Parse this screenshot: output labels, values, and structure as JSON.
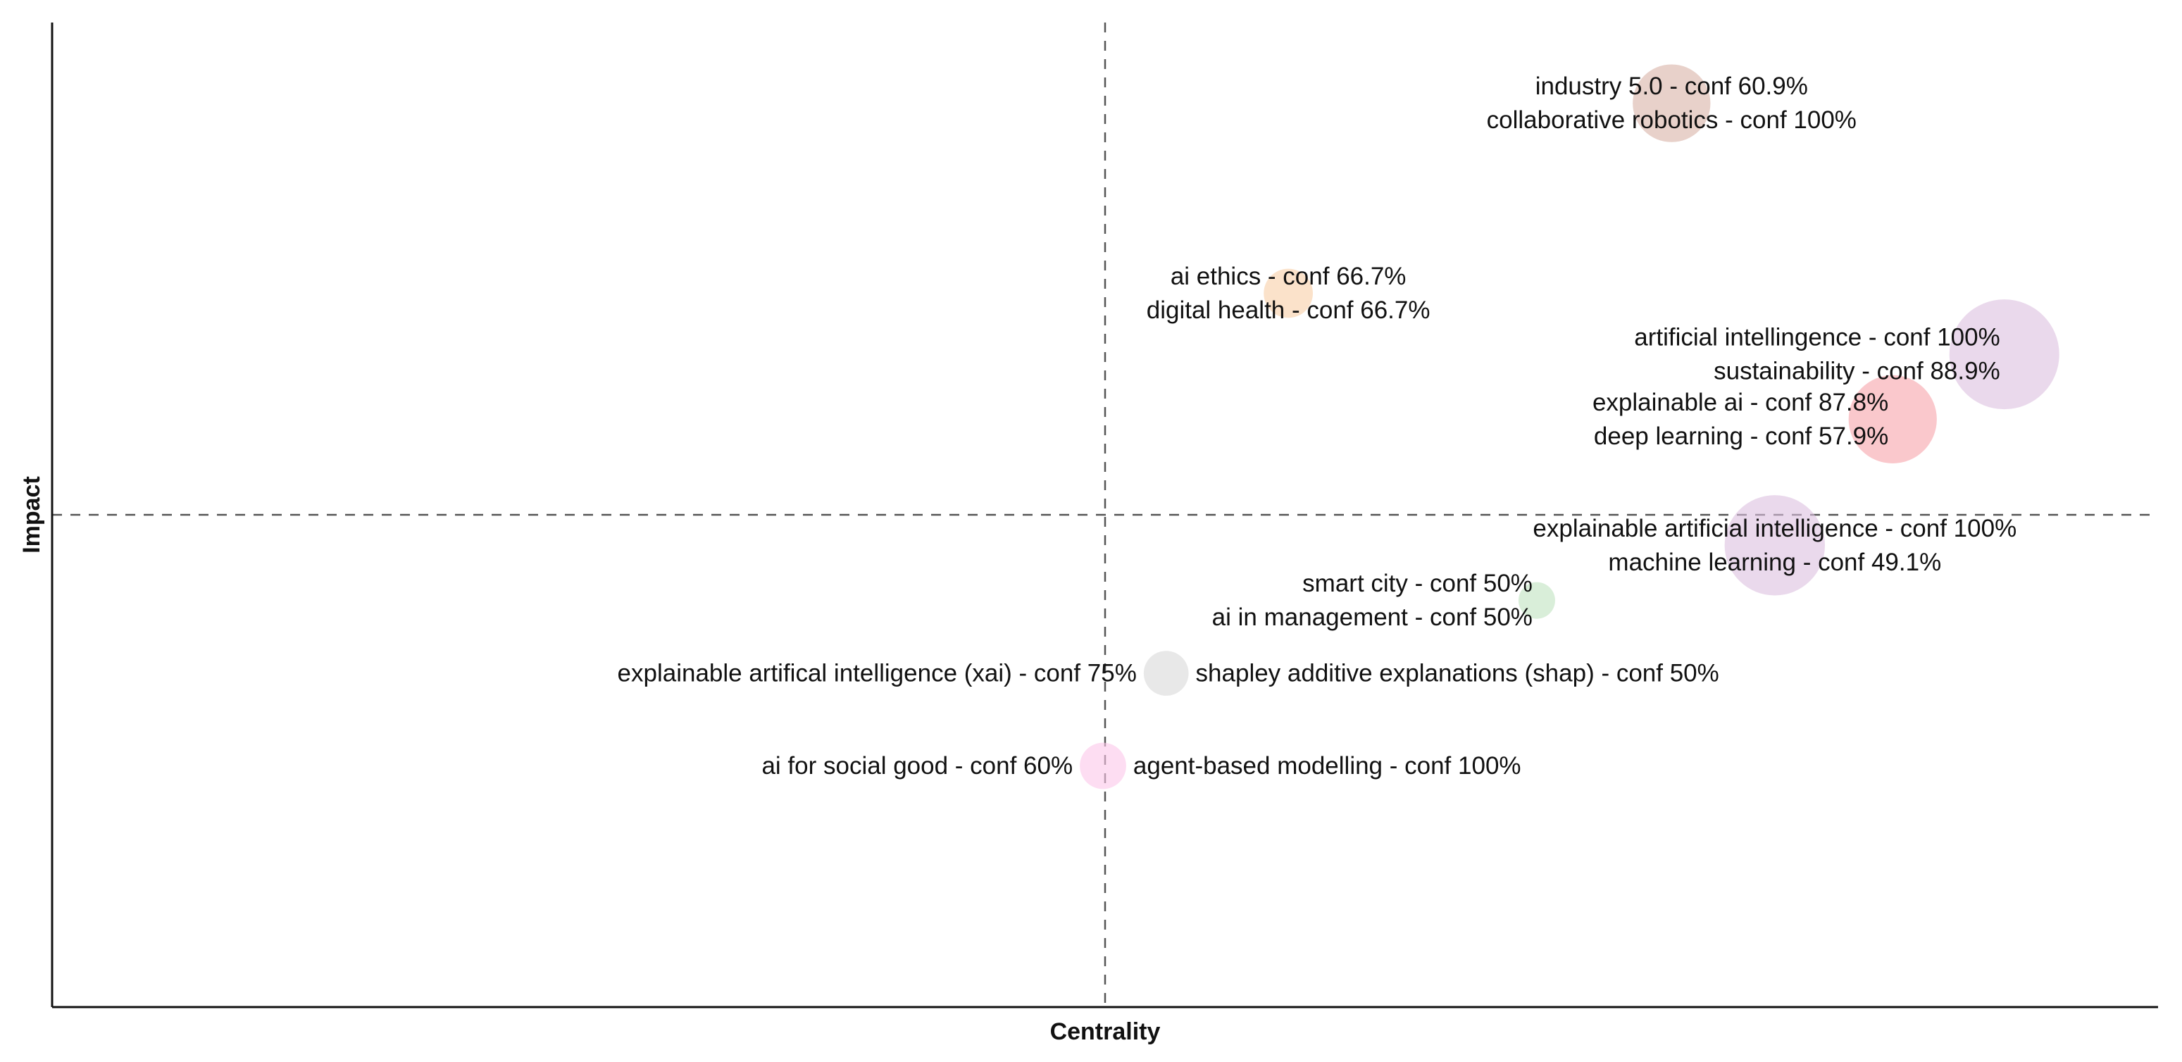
{
  "chart_data": {
    "type": "scatter",
    "title": "",
    "xlabel": "Centrality",
    "ylabel": "Impact",
    "xlim": [
      0,
      100
    ],
    "ylim": [
      0,
      100
    ],
    "reference_lines": {
      "x": 50,
      "y": 50
    },
    "grid": false,
    "legend": "none",
    "points": [
      {
        "x": 76.9,
        "y": 91.8,
        "size": 4.5,
        "color": "#d9b3a6",
        "label_side": "center",
        "labels": [
          "industry 5.0 - conf 60.9%",
          "collaborative robotics - conf 100%"
        ]
      },
      {
        "x": 58.7,
        "y": 72.5,
        "size": 1.8,
        "color": "#f9cfa6",
        "label_side": "center",
        "labels": [
          "ai ethics - conf 66.7%",
          "digital health - conf 66.7%"
        ]
      },
      {
        "x": 92.7,
        "y": 66.3,
        "size": 9.0,
        "color": "#dcc0e0",
        "label_side": "left",
        "labels": [
          "artificial intellingence - conf 100%",
          "sustainability - conf 88.9%"
        ]
      },
      {
        "x": 87.4,
        "y": 59.7,
        "size": 5.8,
        "color": "#f6a3aa",
        "label_side": "left",
        "labels": [
          "explainable ai - conf 87.8%",
          "deep learning - conf 57.9%"
        ]
      },
      {
        "x": 81.8,
        "y": 46.9,
        "size": 7.5,
        "color": "#dcc0e0",
        "label_side": "center",
        "labels": [
          "explainable artificial intelligence - conf 100%",
          "machine learning - conf 49.1%"
        ]
      },
      {
        "x": 70.5,
        "y": 41.3,
        "size": 1.0,
        "color": "#bfe3bf",
        "label_side": "left",
        "labels": [
          "smart city - conf 50%",
          "ai in management - conf 50%"
        ]
      },
      {
        "x": 52.9,
        "y": 33.9,
        "size": 1.5,
        "color": "#d9d9d9",
        "label_side": "split",
        "labels": [
          "explainable artifical intelligence (xai) - conf 75%",
          "shapley additive explanations (shap) - conf 50%"
        ]
      },
      {
        "x": 49.9,
        "y": 24.5,
        "size": 1.6,
        "color": "#fbc6ea",
        "label_side": "split",
        "labels": [
          "ai for social good - conf 60%",
          "agent-based modelling - conf 100%"
        ]
      }
    ],
    "colors": {
      "axis": "#111111",
      "reference_line": "#555555",
      "text": "#111111"
    }
  }
}
